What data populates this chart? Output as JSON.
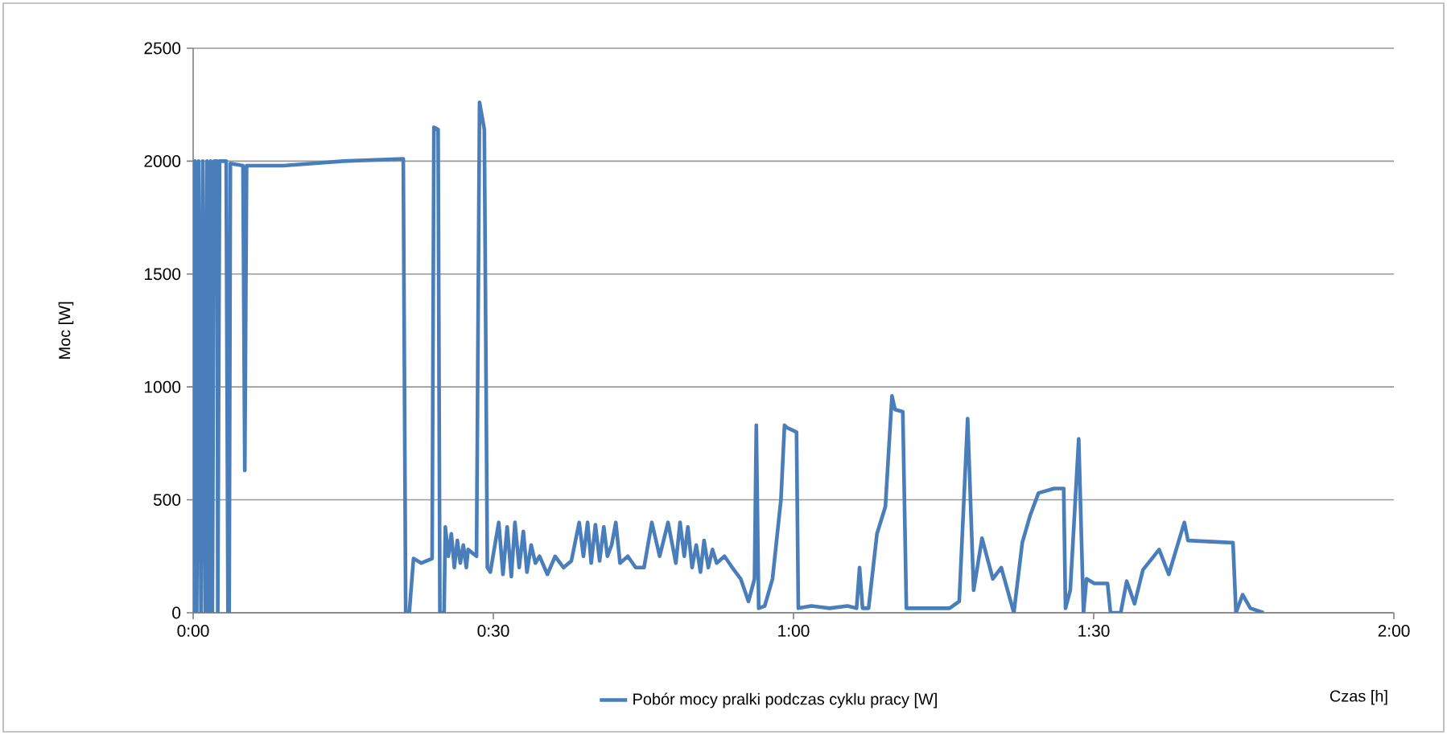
{
  "chart_data": {
    "type": "line",
    "xlabel": "Czas [h]",
    "ylabel": "Moc [W]",
    "xlim": [
      0,
      2
    ],
    "ylim": [
      0,
      2500
    ],
    "xticks": [
      {
        "value": 0,
        "label": "0:00"
      },
      {
        "value": 0.5,
        "label": "0:30"
      },
      {
        "value": 1,
        "label": "1:00"
      },
      {
        "value": 1.5,
        "label": "1:30"
      },
      {
        "value": 2,
        "label": "2:00"
      }
    ],
    "yticks": [
      0,
      500,
      1000,
      1500,
      2000,
      2500
    ],
    "grid": "y",
    "legend": "bottom",
    "marker": "none",
    "line_style": "solid",
    "series": [
      {
        "name": "Pobór mocy pralki podczas cyklu pracy [W]",
        "color": "#4a7ebb",
        "x": [
          0,
          0.003,
          0.006,
          0.009,
          0.013,
          0.016,
          0.02,
          0.023,
          0.026,
          0.029,
          0.032,
          0.035,
          0.04,
          0.041,
          0.044,
          0.055,
          0.058,
          0.06,
          0.062,
          0.083,
          0.086,
          0.089,
          0.15,
          0.2,
          0.25,
          0.35,
          0.354,
          0.36,
          0.367,
          0.38,
          0.398,
          0.401,
          0.408,
          0.411,
          0.418,
          0.42,
          0.425,
          0.43,
          0.435,
          0.44,
          0.445,
          0.45,
          0.455,
          0.458,
          0.472,
          0.477,
          0.485,
          0.49,
          0.495,
          0.509,
          0.516,
          0.523,
          0.53,
          0.536,
          0.543,
          0.55,
          0.556,
          0.563,
          0.57,
          0.577,
          0.59,
          0.603,
          0.617,
          0.63,
          0.643,
          0.65,
          0.657,
          0.663,
          0.67,
          0.677,
          0.684,
          0.69,
          0.697,
          0.704,
          0.711,
          0.724,
          0.737,
          0.751,
          0.764,
          0.777,
          0.791,
          0.804,
          0.811,
          0.818,
          0.824,
          0.831,
          0.838,
          0.845,
          0.851,
          0.858,
          0.865,
          0.872,
          0.885,
          0.898,
          0.912,
          0.925,
          0.935,
          0.938,
          0.942,
          0.952,
          0.965,
          0.979,
          0.985,
          0.989,
          1.005,
          1.008,
          1.03,
          1.06,
          1.09,
          1.105,
          1.11,
          1.115,
          1.125,
          1.139,
          1.153,
          1.164,
          1.169,
          1.182,
          1.188,
          1.22,
          1.26,
          1.276,
          1.29,
          1.3,
          1.314,
          1.332,
          1.346,
          1.367,
          1.381,
          1.394,
          1.408,
          1.434,
          1.45,
          1.453,
          1.461,
          1.475,
          1.483,
          1.488,
          1.501,
          1.523,
          1.528,
          1.545,
          1.555,
          1.568,
          1.582,
          1.609,
          1.625,
          1.643,
          1.651,
          1.657,
          1.732,
          1.737,
          1.748,
          1.761,
          1.783
        ],
        "values": [
          0,
          2000,
          0,
          2000,
          0,
          2000,
          0,
          2000,
          0,
          2000,
          0,
          2000,
          2000,
          0,
          2000,
          2000,
          0,
          0,
          1990,
          1980,
          630,
          1980,
          1980,
          1990,
          2000,
          2010,
          0,
          0,
          240,
          220,
          240,
          2150,
          2140,
          0,
          0,
          380,
          250,
          350,
          200,
          320,
          220,
          300,
          200,
          280,
          250,
          2260,
          2140,
          200,
          180,
          400,
          170,
          380,
          160,
          400,
          200,
          360,
          180,
          300,
          220,
          250,
          170,
          250,
          200,
          230,
          400,
          250,
          400,
          220,
          390,
          230,
          380,
          250,
          300,
          400,
          220,
          250,
          200,
          200,
          400,
          250,
          400,
          220,
          400,
          250,
          380,
          200,
          300,
          180,
          320,
          200,
          280,
          220,
          250,
          200,
          150,
          50,
          150,
          830,
          20,
          30,
          150,
          500,
          830,
          820,
          800,
          20,
          30,
          20,
          30,
          20,
          200,
          20,
          20,
          350,
          470,
          960,
          900,
          890,
          20,
          20,
          20,
          50,
          860,
          100,
          330,
          150,
          200,
          0,
          310,
          430,
          530,
          550,
          550,
          20,
          100,
          770,
          0,
          150,
          130,
          130,
          0,
          0,
          140,
          40,
          190,
          280,
          170,
          330,
          400,
          320,
          310,
          0,
          80,
          20,
          0
        ]
      }
    ]
  }
}
